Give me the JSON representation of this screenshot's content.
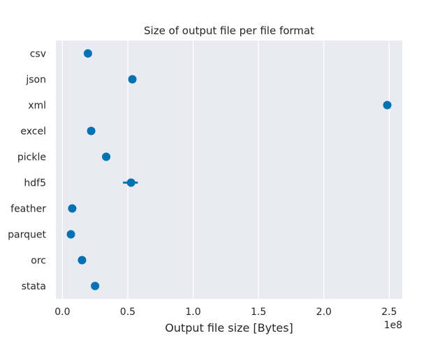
{
  "chart_data": {
    "type": "scatter",
    "title": "Size of output file per file format",
    "xlabel": "Output file size [Bytes]",
    "ylabel": "",
    "x_offset_label": "1e8",
    "xlim": [
      -5000000,
      260000000
    ],
    "xticks": [
      0,
      50000000,
      100000000,
      150000000,
      200000000,
      250000000
    ],
    "xtick_labels": [
      "0.0",
      "0.5",
      "1.0",
      "1.5",
      "2.0",
      "2.5"
    ],
    "grid": true,
    "categories": [
      "csv",
      "json",
      "xml",
      "excel",
      "pickle",
      "hdf5",
      "feather",
      "parquet",
      "orc",
      "stata"
    ],
    "values": [
      19500000,
      53500000,
      248500000,
      22000000,
      33500000,
      52500000,
      7500000,
      6500000,
      15000000,
      25000000
    ],
    "error_intervals": [
      null,
      null,
      null,
      null,
      null,
      [
        47000000,
        57000000
      ],
      null,
      null,
      null,
      null
    ],
    "colors": {
      "point": "#0173b2",
      "plot_background": "#eaeaf2",
      "grid": "#ffffff",
      "text": "#262626"
    }
  }
}
